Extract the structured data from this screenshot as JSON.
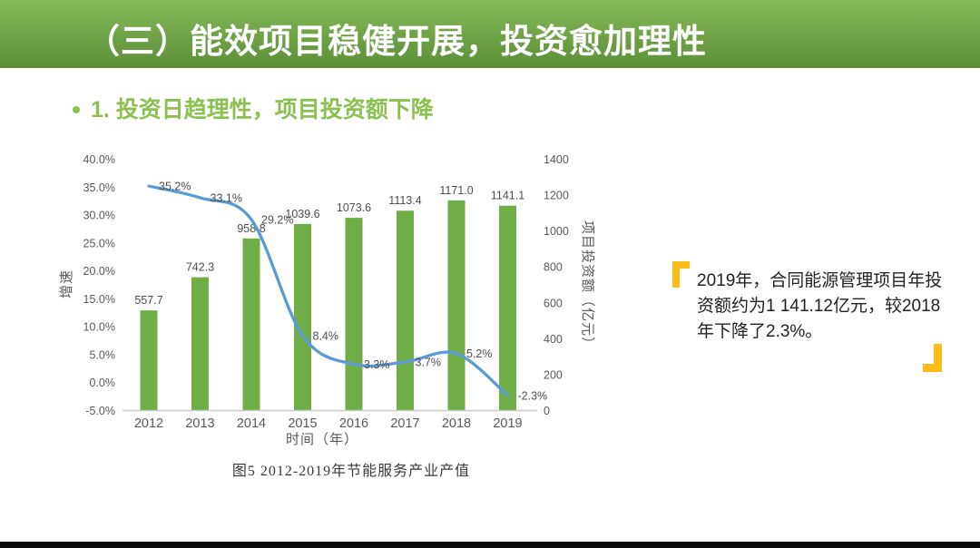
{
  "slide": {
    "title": "（三）能效项目稳健开展，投资愈加理性",
    "subtitle": "1. 投资日趋理性，项目投资额下降"
  },
  "colors": {
    "banner_top": "#87bb58",
    "banner_mid": "#6a9d43",
    "banner_bottom": "#5c8f37",
    "subtitle": "#8cc152",
    "bar": "#6fad47",
    "line": "#5b9bd5",
    "quote": "#fcbd18",
    "axis_text": "#595959"
  },
  "chart_data": {
    "type": "combo-bar-line",
    "categories": [
      "2012",
      "2013",
      "2014",
      "2015",
      "2016",
      "2017",
      "2018",
      "2019"
    ],
    "series": [
      {
        "name": "项目投资额",
        "type": "bar",
        "axis": "right",
        "values": [
          557.7,
          742.3,
          958.8,
          1039.6,
          1073.6,
          1113.4,
          1171.0,
          1141.1
        ]
      },
      {
        "name": "增速",
        "type": "line",
        "axis": "left",
        "values": [
          35.2,
          33.1,
          29.2,
          8.4,
          3.3,
          3.7,
          5.2,
          -2.3
        ]
      }
    ],
    "left_axis": {
      "title": "增速",
      "min": -5,
      "max": 40,
      "step": 5,
      "ticks": [
        "40.0%",
        "35.0%",
        "30.0%",
        "25.0%",
        "20.0%",
        "15.0%",
        "10.0%",
        "5.0%",
        "0.0%",
        "-5.0%"
      ]
    },
    "right_axis": {
      "title": "项目投资额（亿元）",
      "min": 0,
      "max": 1400,
      "step": 200,
      "ticks": [
        "1400",
        "1200",
        "1000",
        "800",
        "600",
        "400",
        "200",
        "0"
      ]
    },
    "xlabel": "时间（年）",
    "caption": "图5 2012-2019年节能服务产业产值",
    "grid": false,
    "legend": "none"
  },
  "callout": {
    "lines": [
      "2019年，合同能源管理项目年投",
      "资额约为1 141.12亿元，较2018",
      "年下降了2.3%。"
    ]
  }
}
